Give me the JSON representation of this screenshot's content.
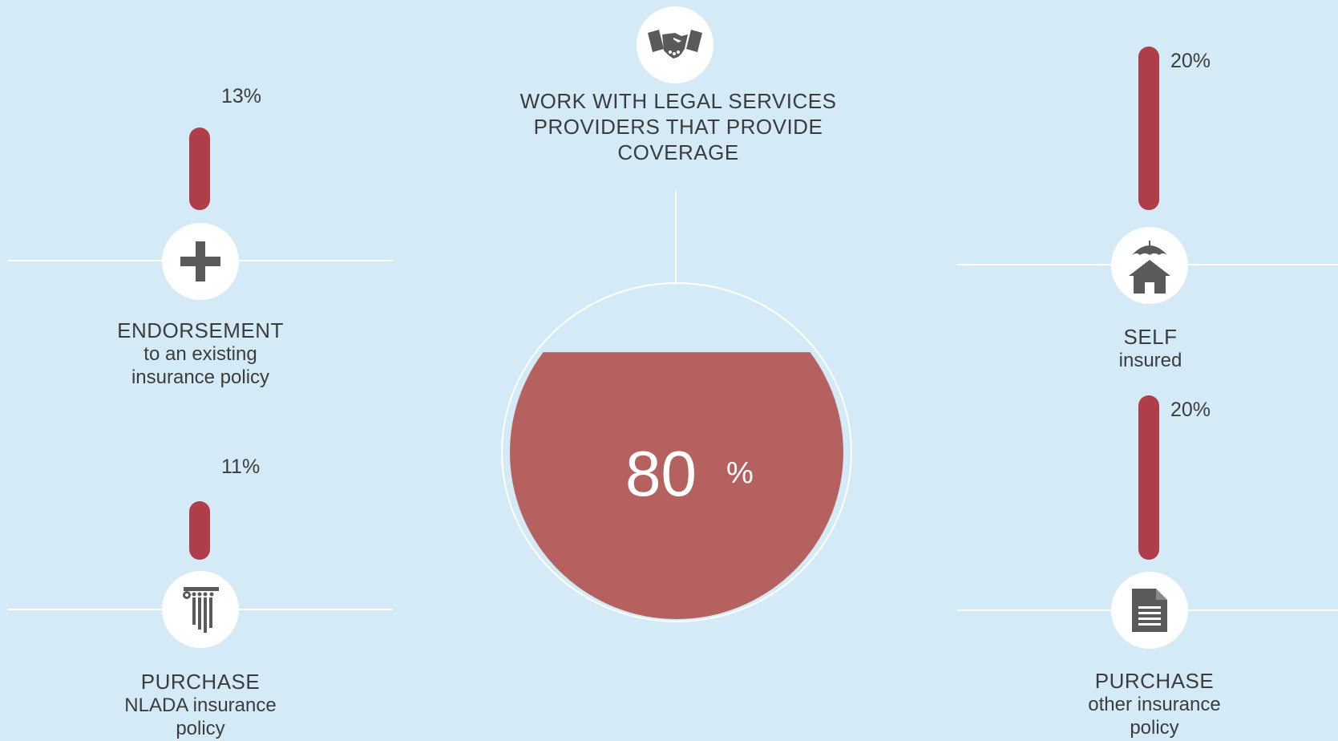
{
  "chart_data": {
    "type": "bar",
    "main": {
      "title": "WORK WITH LEGAL SERVICES PROVIDERS THAT PROVIDE COVERAGE",
      "value": 80,
      "value_label": "80",
      "unit": "%",
      "icon": "handshake-icon"
    },
    "items": [
      {
        "id": "endorsement",
        "title": "ENDORSEMENT",
        "subtitle_lines": [
          "to an existing",
          "insurance policy"
        ],
        "value": 13,
        "label": "13%",
        "icon": "plus-icon"
      },
      {
        "id": "nlada",
        "title": "PURCHASE",
        "subtitle_lines": [
          "NLADA insurance",
          "policy"
        ],
        "value": 11,
        "label": "11%",
        "icon": "column-icon"
      },
      {
        "id": "self",
        "title": "SELF",
        "subtitle_lines": [
          "insured"
        ],
        "value": 20,
        "label": "20%",
        "icon": "insured-house-icon"
      },
      {
        "id": "other",
        "title": "PURCHASE",
        "subtitle_lines": [
          "other insurance",
          "policy"
        ],
        "value": 20,
        "label": "20%",
        "icon": "document-icon"
      }
    ]
  },
  "colors": {
    "background": "#d4eaf7",
    "bar": "#b03d4a",
    "fill": "#b5615f",
    "icon": "#5a5a5a",
    "line": "#ffffff"
  }
}
